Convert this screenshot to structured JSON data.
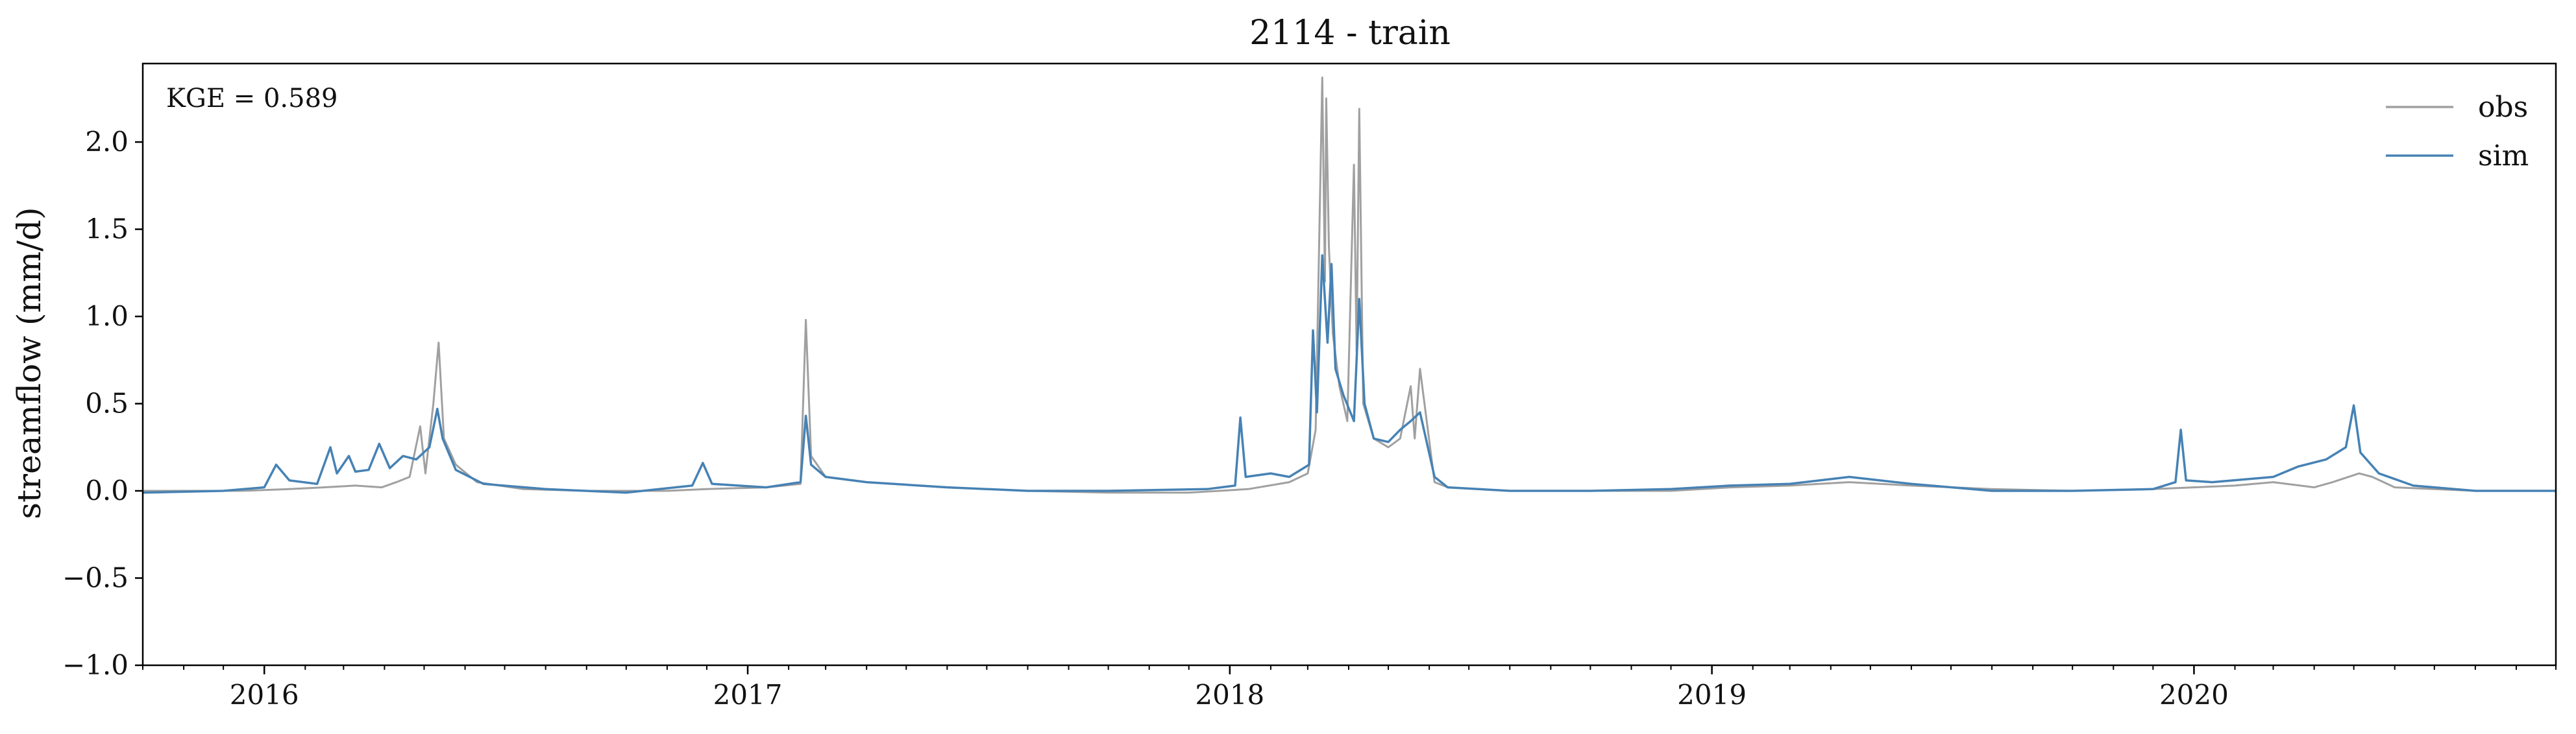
{
  "chart_data": {
    "type": "line",
    "title": "2114 - train",
    "xlabel": "",
    "ylabel": "streamflow (mm/d)",
    "annotation": "KGE = 0.589",
    "grid": false,
    "legend_placement": "top-right",
    "xlim": [
      "2015-10-01",
      "2020-10-01"
    ],
    "ylim": [
      -1.0,
      2.45
    ],
    "x_ticks": [
      "2016",
      "2017",
      "2018",
      "2019",
      "2020"
    ],
    "x_tick_dates": [
      "2016-01-01",
      "2017-01-01",
      "2018-01-01",
      "2019-01-01",
      "2020-01-01"
    ],
    "y_ticks": [
      -1.0,
      -0.5,
      0.0,
      0.5,
      1.0,
      1.5,
      2.0
    ],
    "y_tick_labels": [
      "−1.0",
      "−0.5",
      "0.0",
      "0.5",
      "1.0",
      "1.5",
      "2.0"
    ],
    "series": [
      {
        "name": "obs",
        "color": "#a0a0a0",
        "points": [
          [
            "2015-10-01",
            0.0
          ],
          [
            "2015-12-15",
            0.0
          ],
          [
            "2016-01-20",
            0.01
          ],
          [
            "2016-02-15",
            0.02
          ],
          [
            "2016-03-10",
            0.03
          ],
          [
            "2016-03-30",
            0.02
          ],
          [
            "2016-04-10",
            0.05
          ],
          [
            "2016-04-20",
            0.08
          ],
          [
            "2016-04-28",
            0.37
          ],
          [
            "2016-05-02",
            0.1
          ],
          [
            "2016-05-08",
            0.5
          ],
          [
            "2016-05-12",
            0.85
          ],
          [
            "2016-05-16",
            0.3
          ],
          [
            "2016-05-25",
            0.15
          ],
          [
            "2016-06-10",
            0.05
          ],
          [
            "2016-07-15",
            0.01
          ],
          [
            "2016-09-01",
            0.0
          ],
          [
            "2016-11-01",
            0.0
          ],
          [
            "2016-12-01",
            0.01
          ],
          [
            "2017-01-15",
            0.02
          ],
          [
            "2017-02-10",
            0.04
          ],
          [
            "2017-02-14",
            0.98
          ],
          [
            "2017-02-18",
            0.2
          ],
          [
            "2017-03-01",
            0.08
          ],
          [
            "2017-04-01",
            0.05
          ],
          [
            "2017-06-01",
            0.02
          ],
          [
            "2017-08-01",
            0.0
          ],
          [
            "2017-10-01",
            -0.01
          ],
          [
            "2017-12-01",
            -0.01
          ],
          [
            "2018-01-15",
            0.01
          ],
          [
            "2018-02-15",
            0.05
          ],
          [
            "2018-03-01",
            0.1
          ],
          [
            "2018-03-07",
            0.35
          ],
          [
            "2018-03-12",
            2.37
          ],
          [
            "2018-03-14",
            1.2
          ],
          [
            "2018-03-15",
            2.25
          ],
          [
            "2018-03-17",
            1.4
          ],
          [
            "2018-03-20",
            0.9
          ],
          [
            "2018-03-25",
            0.6
          ],
          [
            "2018-03-31",
            0.4
          ],
          [
            "2018-04-05",
            1.87
          ],
          [
            "2018-04-07",
            0.8
          ],
          [
            "2018-04-09",
            2.19
          ],
          [
            "2018-04-12",
            0.5
          ],
          [
            "2018-04-20",
            0.3
          ],
          [
            "2018-05-01",
            0.25
          ],
          [
            "2018-05-10",
            0.3
          ],
          [
            "2018-05-18",
            0.6
          ],
          [
            "2018-05-21",
            0.3
          ],
          [
            "2018-05-25",
            0.7
          ],
          [
            "2018-06-05",
            0.05
          ],
          [
            "2018-06-15",
            0.02
          ],
          [
            "2018-08-01",
            0.0
          ],
          [
            "2018-10-01",
            0.0
          ],
          [
            "2018-12-01",
            0.0
          ],
          [
            "2019-01-15",
            0.02
          ],
          [
            "2019-03-01",
            0.03
          ],
          [
            "2019-04-15",
            0.05
          ],
          [
            "2019-06-01",
            0.03
          ],
          [
            "2019-08-01",
            0.01
          ],
          [
            "2019-10-01",
            0.0
          ],
          [
            "2019-12-01",
            0.01
          ],
          [
            "2020-01-01",
            0.02
          ],
          [
            "2020-02-01",
            0.03
          ],
          [
            "2020-03-01",
            0.05
          ],
          [
            "2020-04-01",
            0.02
          ],
          [
            "2020-04-15",
            0.05
          ],
          [
            "2020-05-05",
            0.1
          ],
          [
            "2020-05-15",
            0.08
          ],
          [
            "2020-06-01",
            0.02
          ],
          [
            "2020-08-01",
            0.0
          ],
          [
            "2020-10-01",
            0.0
          ]
        ]
      },
      {
        "name": "sim",
        "color": "#4682b4",
        "points": [
          [
            "2015-10-01",
            -0.01
          ],
          [
            "2015-12-01",
            0.0
          ],
          [
            "2016-01-01",
            0.02
          ],
          [
            "2016-01-10",
            0.15
          ],
          [
            "2016-01-20",
            0.06
          ],
          [
            "2016-02-10",
            0.04
          ],
          [
            "2016-02-20",
            0.25
          ],
          [
            "2016-02-25",
            0.1
          ],
          [
            "2016-03-05",
            0.2
          ],
          [
            "2016-03-10",
            0.11
          ],
          [
            "2016-03-20",
            0.12
          ],
          [
            "2016-03-28",
            0.27
          ],
          [
            "2016-04-05",
            0.13
          ],
          [
            "2016-04-15",
            0.2
          ],
          [
            "2016-04-25",
            0.18
          ],
          [
            "2016-05-05",
            0.25
          ],
          [
            "2016-05-11",
            0.47
          ],
          [
            "2016-05-15",
            0.3
          ],
          [
            "2016-05-25",
            0.12
          ],
          [
            "2016-06-15",
            0.04
          ],
          [
            "2016-08-01",
            0.01
          ],
          [
            "2016-10-01",
            -0.01
          ],
          [
            "2016-11-20",
            0.03
          ],
          [
            "2016-11-28",
            0.16
          ],
          [
            "2016-12-05",
            0.04
          ],
          [
            "2017-01-15",
            0.02
          ],
          [
            "2017-02-10",
            0.05
          ],
          [
            "2017-02-14",
            0.43
          ],
          [
            "2017-02-18",
            0.15
          ],
          [
            "2017-03-01",
            0.08
          ],
          [
            "2017-04-01",
            0.05
          ],
          [
            "2017-06-01",
            0.02
          ],
          [
            "2017-08-01",
            0.0
          ],
          [
            "2017-10-01",
            0.0
          ],
          [
            "2017-12-15",
            0.01
          ],
          [
            "2018-01-05",
            0.03
          ],
          [
            "2018-01-09",
            0.42
          ],
          [
            "2018-01-13",
            0.08
          ],
          [
            "2018-02-01",
            0.1
          ],
          [
            "2018-02-15",
            0.08
          ],
          [
            "2018-03-02",
            0.15
          ],
          [
            "2018-03-05",
            0.92
          ],
          [
            "2018-03-08",
            0.45
          ],
          [
            "2018-03-12",
            1.35
          ],
          [
            "2018-03-16",
            0.85
          ],
          [
            "2018-03-19",
            1.3
          ],
          [
            "2018-03-22",
            0.7
          ],
          [
            "2018-03-28",
            0.55
          ],
          [
            "2018-04-05",
            0.4
          ],
          [
            "2018-04-09",
            1.1
          ],
          [
            "2018-04-13",
            0.5
          ],
          [
            "2018-04-20",
            0.3
          ],
          [
            "2018-05-01",
            0.28
          ],
          [
            "2018-05-10",
            0.35
          ],
          [
            "2018-05-18",
            0.4
          ],
          [
            "2018-05-25",
            0.45
          ],
          [
            "2018-06-05",
            0.08
          ],
          [
            "2018-06-15",
            0.02
          ],
          [
            "2018-08-01",
            0.0
          ],
          [
            "2018-10-01",
            0.0
          ],
          [
            "2018-12-01",
            0.01
          ],
          [
            "2019-01-15",
            0.03
          ],
          [
            "2019-03-01",
            0.04
          ],
          [
            "2019-04-15",
            0.08
          ],
          [
            "2019-06-01",
            0.04
          ],
          [
            "2019-08-01",
            0.0
          ],
          [
            "2019-10-01",
            0.0
          ],
          [
            "2019-12-01",
            0.01
          ],
          [
            "2019-12-18",
            0.05
          ],
          [
            "2019-12-22",
            0.35
          ],
          [
            "2019-12-26",
            0.06
          ],
          [
            "2020-01-15",
            0.05
          ],
          [
            "2020-03-01",
            0.08
          ],
          [
            "2020-03-20",
            0.14
          ],
          [
            "2020-04-10",
            0.18
          ],
          [
            "2020-04-25",
            0.25
          ],
          [
            "2020-05-01",
            0.49
          ],
          [
            "2020-05-06",
            0.22
          ],
          [
            "2020-05-20",
            0.1
          ],
          [
            "2020-06-15",
            0.03
          ],
          [
            "2020-08-01",
            0.0
          ],
          [
            "2020-10-01",
            0.0
          ]
        ]
      }
    ]
  }
}
